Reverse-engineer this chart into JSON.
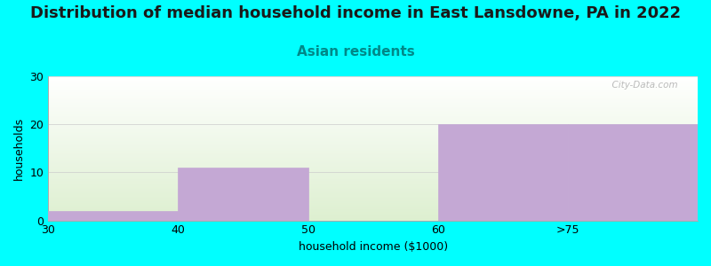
{
  "title": "Distribution of median household income in East Lansdowne, PA in 2022",
  "subtitle": "Asian residents",
  "xlabel": "household income ($1000)",
  "ylabel": "households",
  "background_color": "#00FFFF",
  "plot_bg_top": "#FFFFFF",
  "plot_bg_bottom": "#DDEFD0",
  "bar_color": "#C4A8D4",
  "bar_edge_color": "#9B85B5",
  "categories": [
    "30",
    "40",
    "50",
    "60",
    ">75"
  ],
  "values": [
    2,
    11,
    0,
    20,
    20
  ],
  "ylim": [
    0,
    30
  ],
  "yticks": [
    0,
    10,
    20,
    30
  ],
  "xtick_positions": [
    0,
    1,
    2,
    3,
    4
  ],
  "watermark": "  City-Data.com",
  "title_fontsize": 13,
  "subtitle_fontsize": 11,
  "axis_label_fontsize": 9,
  "subtitle_color": "#008888"
}
